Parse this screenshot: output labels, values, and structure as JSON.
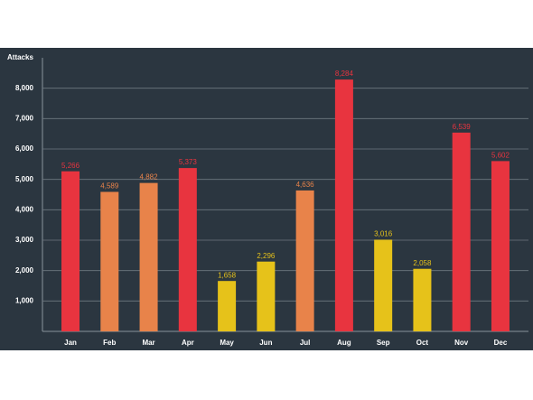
{
  "chart_data": {
    "type": "bar",
    "y_label": "Attacks",
    "categories": [
      "Jan",
      "Feb",
      "Mar",
      "Apr",
      "May",
      "Jun",
      "Jul",
      "Aug",
      "Sep",
      "Oct",
      "Nov",
      "Dec"
    ],
    "values": [
      5266,
      4589,
      4882,
      5373,
      1658,
      2296,
      4636,
      8284,
      3016,
      2058,
      6539,
      5602
    ],
    "value_labels": [
      "5,266",
      "4,589",
      "4,882",
      "5,373",
      "1,658",
      "2,296",
      "4,636",
      "8,284",
      "3,016",
      "2,058",
      "6,539",
      "5,602"
    ],
    "colors": [
      "#e8343f",
      "#e8834a",
      "#e8834a",
      "#e8343f",
      "#e6c21a",
      "#e6c21a",
      "#e8834a",
      "#e8343f",
      "#e6c21a",
      "#e6c21a",
      "#e8343f",
      "#e8343f"
    ],
    "ylim": [
      0,
      9000
    ],
    "yticks": [
      {
        "value": 1000,
        "label": "1,000"
      },
      {
        "value": 2000,
        "label": "2,000"
      },
      {
        "value": 3000,
        "label": "3,000"
      },
      {
        "value": 4000,
        "label": "4,000"
      },
      {
        "value": 5000,
        "label": "5,000"
      },
      {
        "value": 6000,
        "label": "6,000"
      },
      {
        "value": 7000,
        "label": "7,000"
      },
      {
        "value": 8000,
        "label": "8,000"
      }
    ],
    "grid": true
  }
}
